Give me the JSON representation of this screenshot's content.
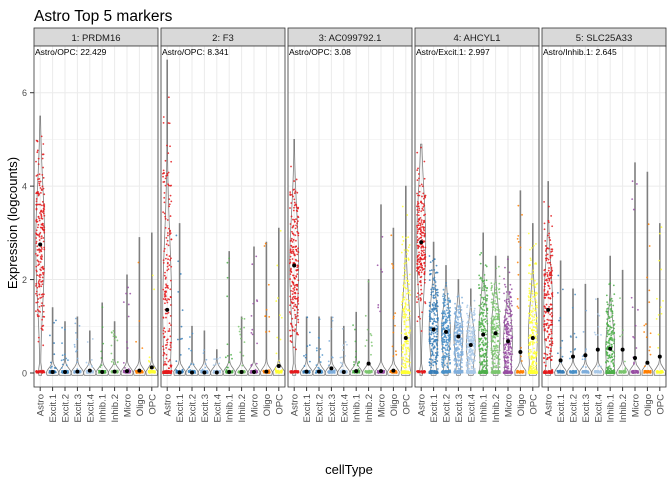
{
  "chart_data": {
    "type": "violin",
    "title": "Astro Top 5 markers",
    "xlabel": "cellType",
    "ylabel": "Expression (logcounts)",
    "ylim": [
      -0.3,
      7.0
    ],
    "yticks": [
      0,
      2,
      4,
      6
    ],
    "grid": true,
    "categories": [
      "Astro",
      "Excit.1",
      "Excit.2",
      "Excit.3",
      "Excit.4",
      "Inhib.1",
      "Inhib.2",
      "Micro",
      "Oligo",
      "OPC"
    ],
    "category_colors": [
      "#E41A1C",
      "#377EB8",
      "#4A90C8",
      "#7FAEDC",
      "#A8C8E8",
      "#4DAF4A",
      "#7BC66F",
      "#984EA3",
      "#FF7F00",
      "#FFFF33"
    ],
    "panels": [
      {
        "strip": "1: PRDM16",
        "annotation": "Astro/OPC: 22.429",
        "max": [
          5.5,
          1.4,
          1.1,
          1.2,
          0.9,
          1.5,
          1.1,
          2.1,
          2.9,
          3.0
        ],
        "mean": [
          2.75,
          0.02,
          0.02,
          0.03,
          0.05,
          0.02,
          0.03,
          0.04,
          0.05,
          0.12
        ]
      },
      {
        "strip": "2: F3",
        "annotation": "Astro/OPC: 8.341",
        "max": [
          6.7,
          3.2,
          1.0,
          0.9,
          0.5,
          2.6,
          1.2,
          2.7,
          2.8,
          3.1
        ],
        "mean": [
          1.35,
          0.01,
          0.01,
          0.01,
          0.01,
          0.02,
          0.02,
          0.02,
          0.03,
          0.15
        ]
      },
      {
        "strip": "3: AC099792.1",
        "annotation": "Astro/OPC: 3.08",
        "max": [
          5.0,
          1.2,
          1.2,
          1.2,
          1.0,
          1.3,
          2.0,
          3.6,
          3.1,
          4.0
        ],
        "mean": [
          2.3,
          0.03,
          0.03,
          0.1,
          0.02,
          0.04,
          0.2,
          0.04,
          0.05,
          0.75
        ]
      },
      {
        "strip": "4: AHCYL1",
        "annotation": "Astro/Excit.1: 2.997",
        "max": [
          4.9,
          2.8,
          2.3,
          2.0,
          1.8,
          3.0,
          2.5,
          2.5,
          3.9,
          3.2
        ],
        "mean": [
          2.8,
          0.93,
          0.88,
          0.78,
          0.6,
          0.82,
          0.85,
          0.68,
          0.45,
          0.75
        ]
      },
      {
        "strip": "5: SLC25A33",
        "annotation": "Astro/Inhib.1: 2.645",
        "max": [
          4.1,
          2.4,
          1.8,
          1.9,
          1.6,
          2.5,
          2.2,
          4.5,
          4.3,
          3.2
        ],
        "mean": [
          1.35,
          0.27,
          0.35,
          0.38,
          0.5,
          0.52,
          0.5,
          0.32,
          0.22,
          0.35
        ]
      }
    ]
  }
}
